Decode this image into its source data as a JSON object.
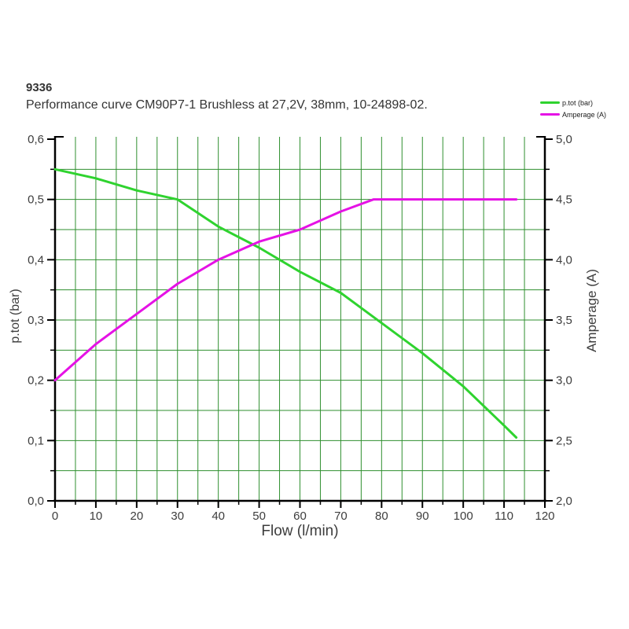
{
  "page": {
    "doc_number": "9336",
    "title": "Performance curve CM90P7-1 Brushless at 27,2V, 38mm, 10-24898-02."
  },
  "legend": {
    "items": [
      {
        "label": "p.tot (bar)",
        "color": "#2fd32f"
      },
      {
        "label": "Amperage (A)",
        "color": "#e512e5"
      }
    ]
  },
  "chart_data": {
    "type": "line",
    "title": "Performance curve CM90P7-1 Brushless at 27,2V, 38mm, 10-24898-02.",
    "xlabel": "Flow (l/min)",
    "ylabel_left": "p.tot (bar)",
    "ylabel_right": "Amperage (A)",
    "xlim": [
      0,
      120
    ],
    "ylim_left": [
      0.0,
      0.6
    ],
    "ylim_right": [
      2.0,
      5.0
    ],
    "grid": {
      "enabled": true,
      "x_minor_step": 5,
      "left_minor_step": 0.05,
      "color": "#2f8f2f"
    },
    "colors": {
      "axis": "#000000",
      "tick_text": "#3d3d3d",
      "grid": "#2f8f2f"
    },
    "legend_position": "top-right",
    "axes": {
      "x": {
        "label": "Flow (l/min)",
        "major_tick_values": [
          0,
          10,
          20,
          30,
          40,
          50,
          60,
          70,
          80,
          90,
          100,
          110,
          120
        ],
        "major_tick_labels": [
          "0",
          "10",
          "20",
          "30",
          "40",
          "50",
          "60",
          "70",
          "80",
          "90",
          "100",
          "110",
          "120"
        ],
        "minor_tick_values": [
          5,
          15,
          25,
          35,
          45,
          55,
          65,
          75,
          85,
          95,
          105,
          115
        ]
      },
      "left": {
        "label": "p.tot (bar)",
        "major_tick_values": [
          0.0,
          0.1,
          0.2,
          0.3,
          0.4,
          0.5,
          0.6
        ],
        "major_tick_labels": [
          "0,0",
          "0,1",
          "0,2",
          "0,3",
          "0,4",
          "0,5",
          "0,6"
        ],
        "minor_tick_values": [
          0.05,
          0.15,
          0.25,
          0.35,
          0.45,
          0.55
        ]
      },
      "right": {
        "label": "Amperage (A)",
        "major_tick_values": [
          2.0,
          2.5,
          3.0,
          3.5,
          4.0,
          4.5,
          5.0
        ],
        "major_tick_labels": [
          "2,0",
          "2,5",
          "3,0",
          "3,5",
          "4,0",
          "4,5",
          "5,0"
        ],
        "minor_tick_values": [
          2.25,
          2.75,
          3.25,
          3.75,
          4.25,
          4.75
        ]
      }
    },
    "series": [
      {
        "name": "p.tot (bar)",
        "axis": "left",
        "color": "#2fd32f",
        "points": [
          [
            0,
            0.55
          ],
          [
            10,
            0.535
          ],
          [
            20,
            0.515
          ],
          [
            30,
            0.5
          ],
          [
            40,
            0.455
          ],
          [
            50,
            0.42
          ],
          [
            60,
            0.38
          ],
          [
            70,
            0.345
          ],
          [
            80,
            0.295
          ],
          [
            90,
            0.245
          ],
          [
            100,
            0.19
          ],
          [
            110,
            0.125
          ],
          [
            113,
            0.105
          ]
        ]
      },
      {
        "name": "Amperage (A)",
        "axis": "right",
        "color": "#e512e5",
        "points": [
          [
            0,
            3.0
          ],
          [
            10,
            3.3
          ],
          [
            20,
            3.55
          ],
          [
            30,
            3.8
          ],
          [
            40,
            4.0
          ],
          [
            50,
            4.15
          ],
          [
            60,
            4.25
          ],
          [
            70,
            4.4
          ],
          [
            78,
            4.5
          ],
          [
            90,
            4.5
          ],
          [
            100,
            4.5
          ],
          [
            110,
            4.5
          ],
          [
            113,
            4.5
          ]
        ]
      }
    ]
  }
}
